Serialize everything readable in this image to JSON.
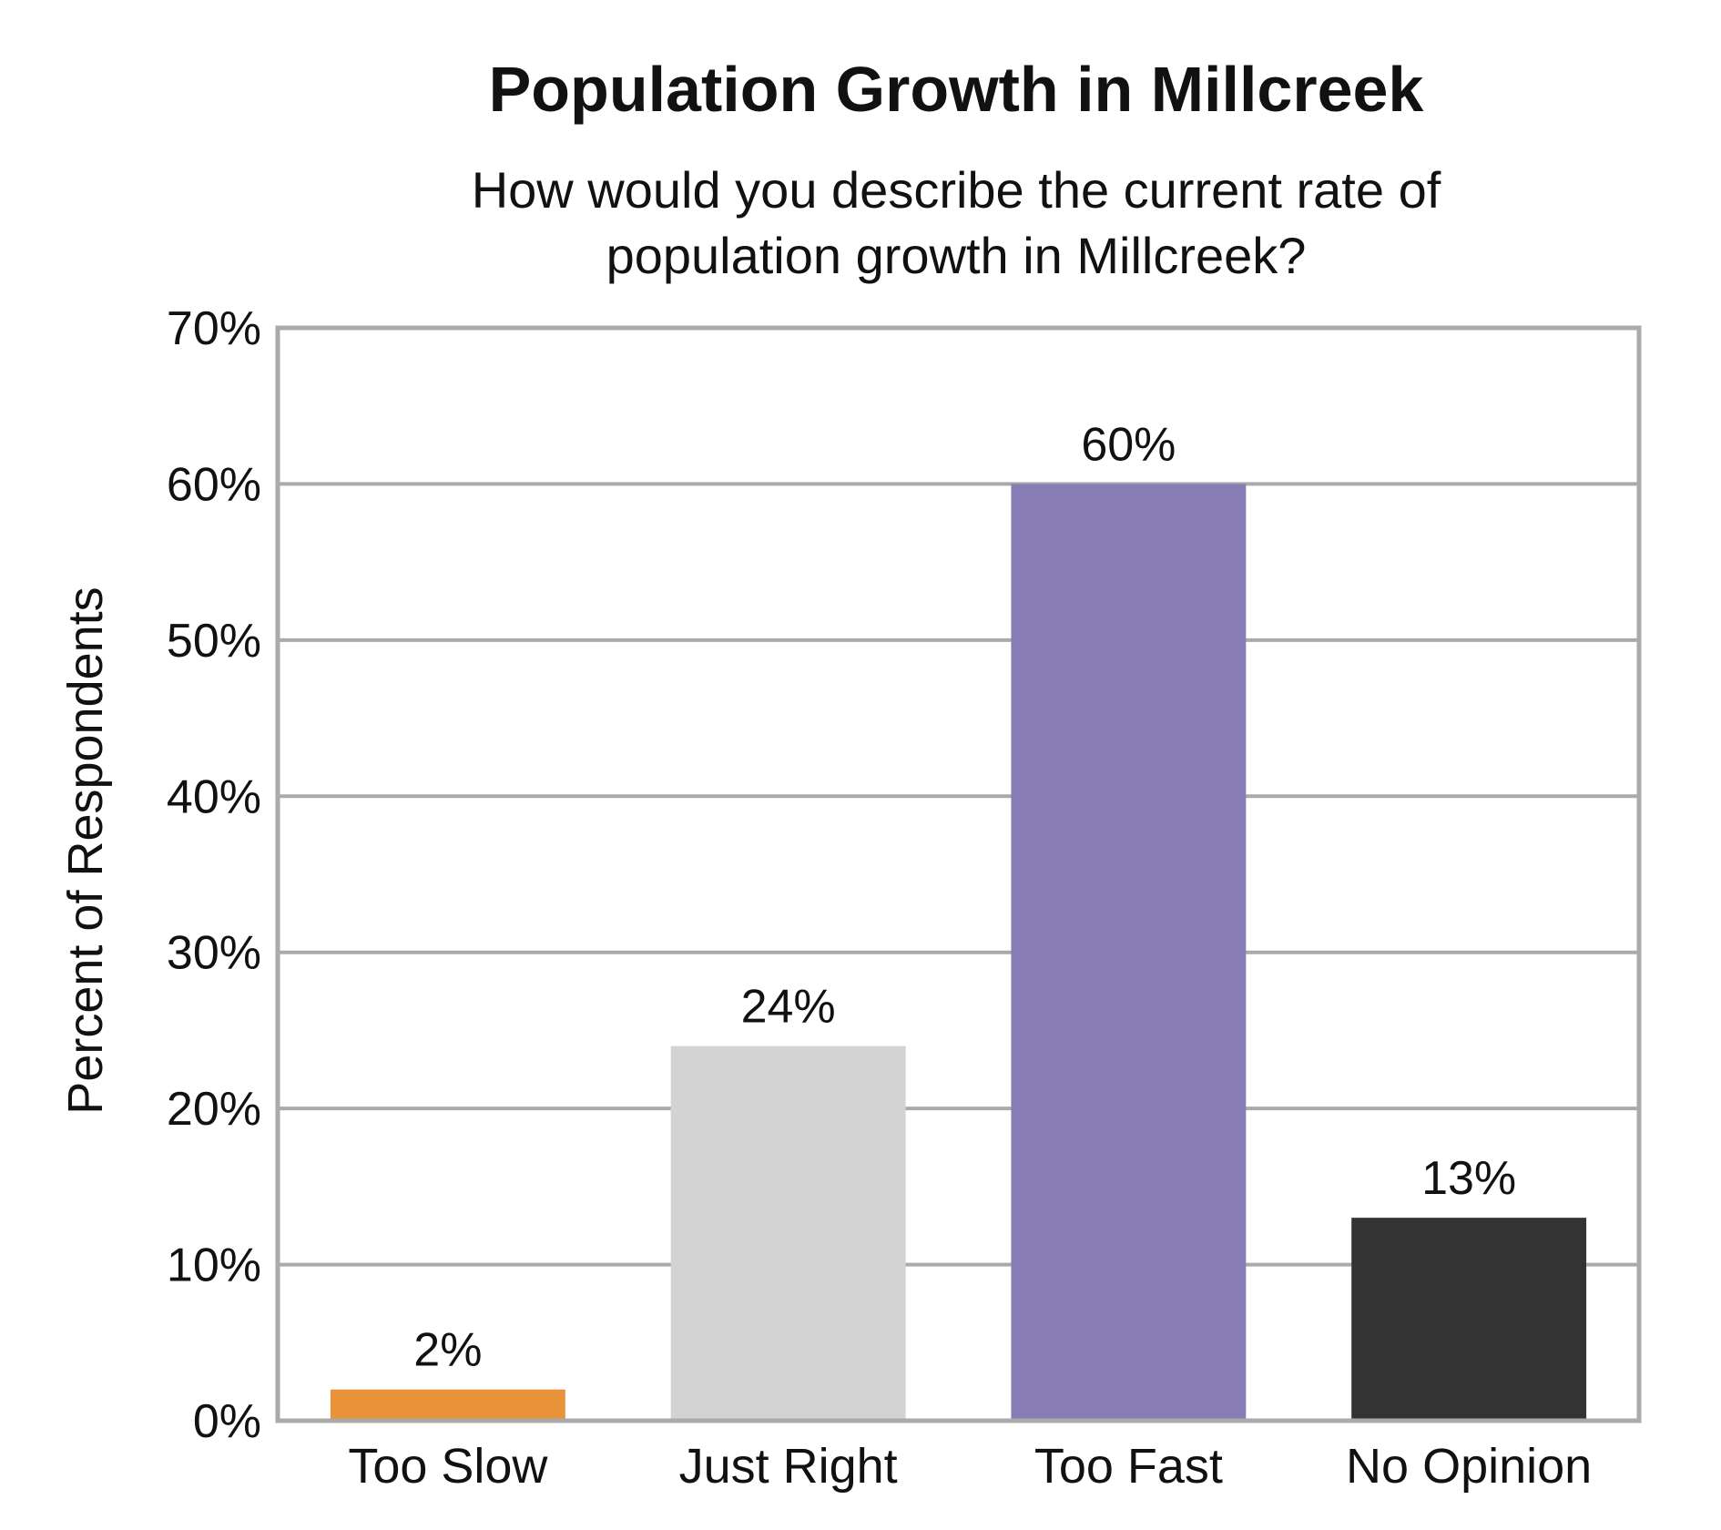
{
  "chart_data": {
    "type": "bar",
    "title": "Population Growth in Millcreek",
    "subtitle": [
      "How would you describe the current rate of",
      "population growth in Millcreek?"
    ],
    "xlabel": "",
    "ylabel": "Percent of Respondents",
    "categories": [
      "Too Slow",
      "Just Right",
      "Too Fast",
      "No Opinion"
    ],
    "values": [
      2,
      24,
      60,
      13
    ],
    "value_labels": [
      "2%",
      "24%",
      "60%",
      "13%"
    ],
    "colors": [
      "#E8923A",
      "#D3D3D3",
      "#877CB5",
      "#333333"
    ],
    "ylim": [
      0,
      70
    ],
    "yticks": [
      0,
      10,
      20,
      30,
      40,
      50,
      60,
      70
    ],
    "ytick_labels": [
      "0%",
      "10%",
      "20%",
      "30%",
      "40%",
      "50%",
      "60%",
      "70%"
    ],
    "grid": true,
    "grid_color": "#AAAAAA",
    "frame_color": "#AAAAAA"
  }
}
